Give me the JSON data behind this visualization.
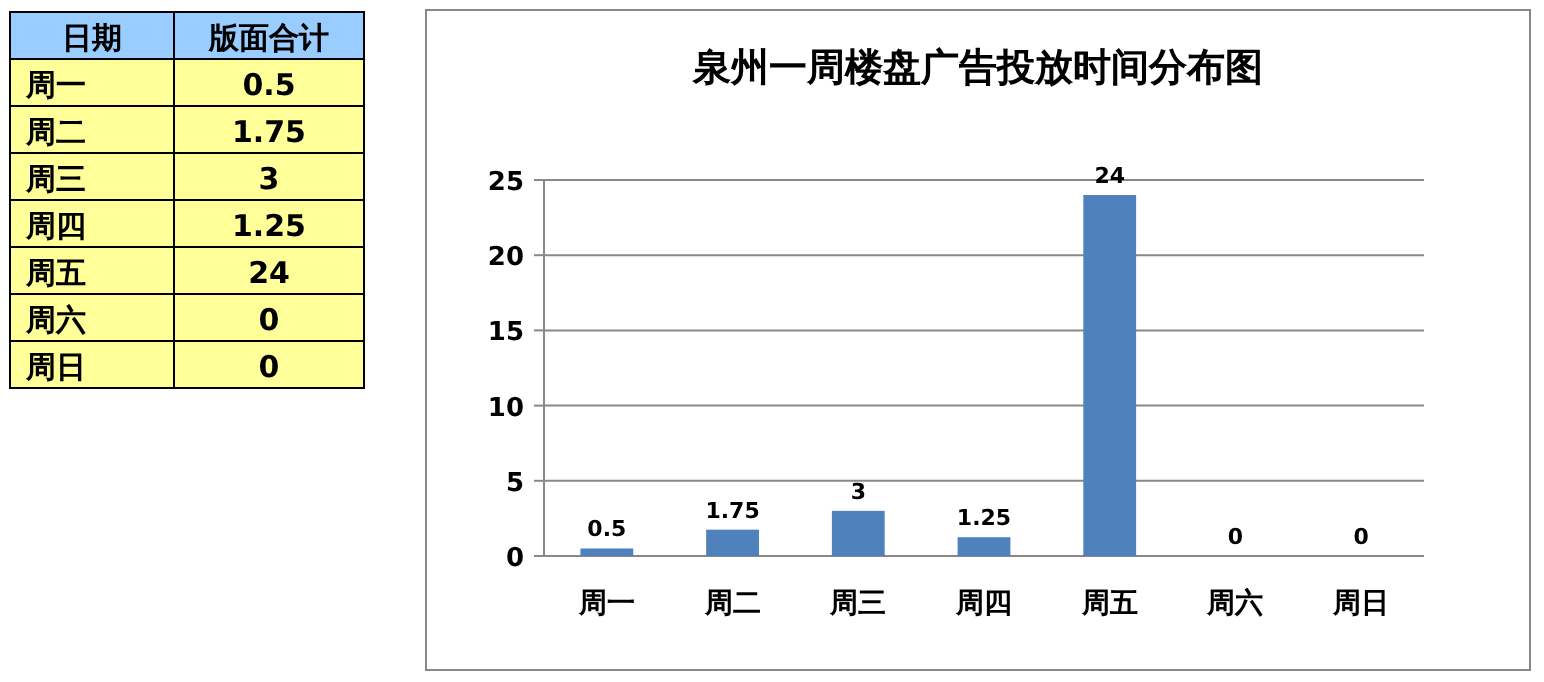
{
  "chart_data": [
    {
      "type": "other",
      "categories": [
        "日期",
        "周一",
        "周二",
        "周三",
        "周四",
        "周五",
        "周六",
        "周日"
      ],
      "annotations": [
        "版面合计",
        "0.5",
        "1.75",
        "3",
        "1.25",
        "24",
        "0",
        "0"
      ]
    },
    {
      "type": "bar",
      "title": "泉州一周楼盘广告投放时间分布图",
      "categories": [
        "周一",
        "周二",
        "周三",
        "周四",
        "周五",
        "周六",
        "周日"
      ],
      "values": [
        0.5,
        1.75,
        3,
        1.25,
        24,
        0,
        0
      ],
      "color": "#4f81bd",
      "ylim": [
        0,
        25
      ],
      "yticks": [
        0,
        5,
        10,
        15,
        20,
        25
      ],
      "grid": "y",
      "data_labels": true
    }
  ]
}
